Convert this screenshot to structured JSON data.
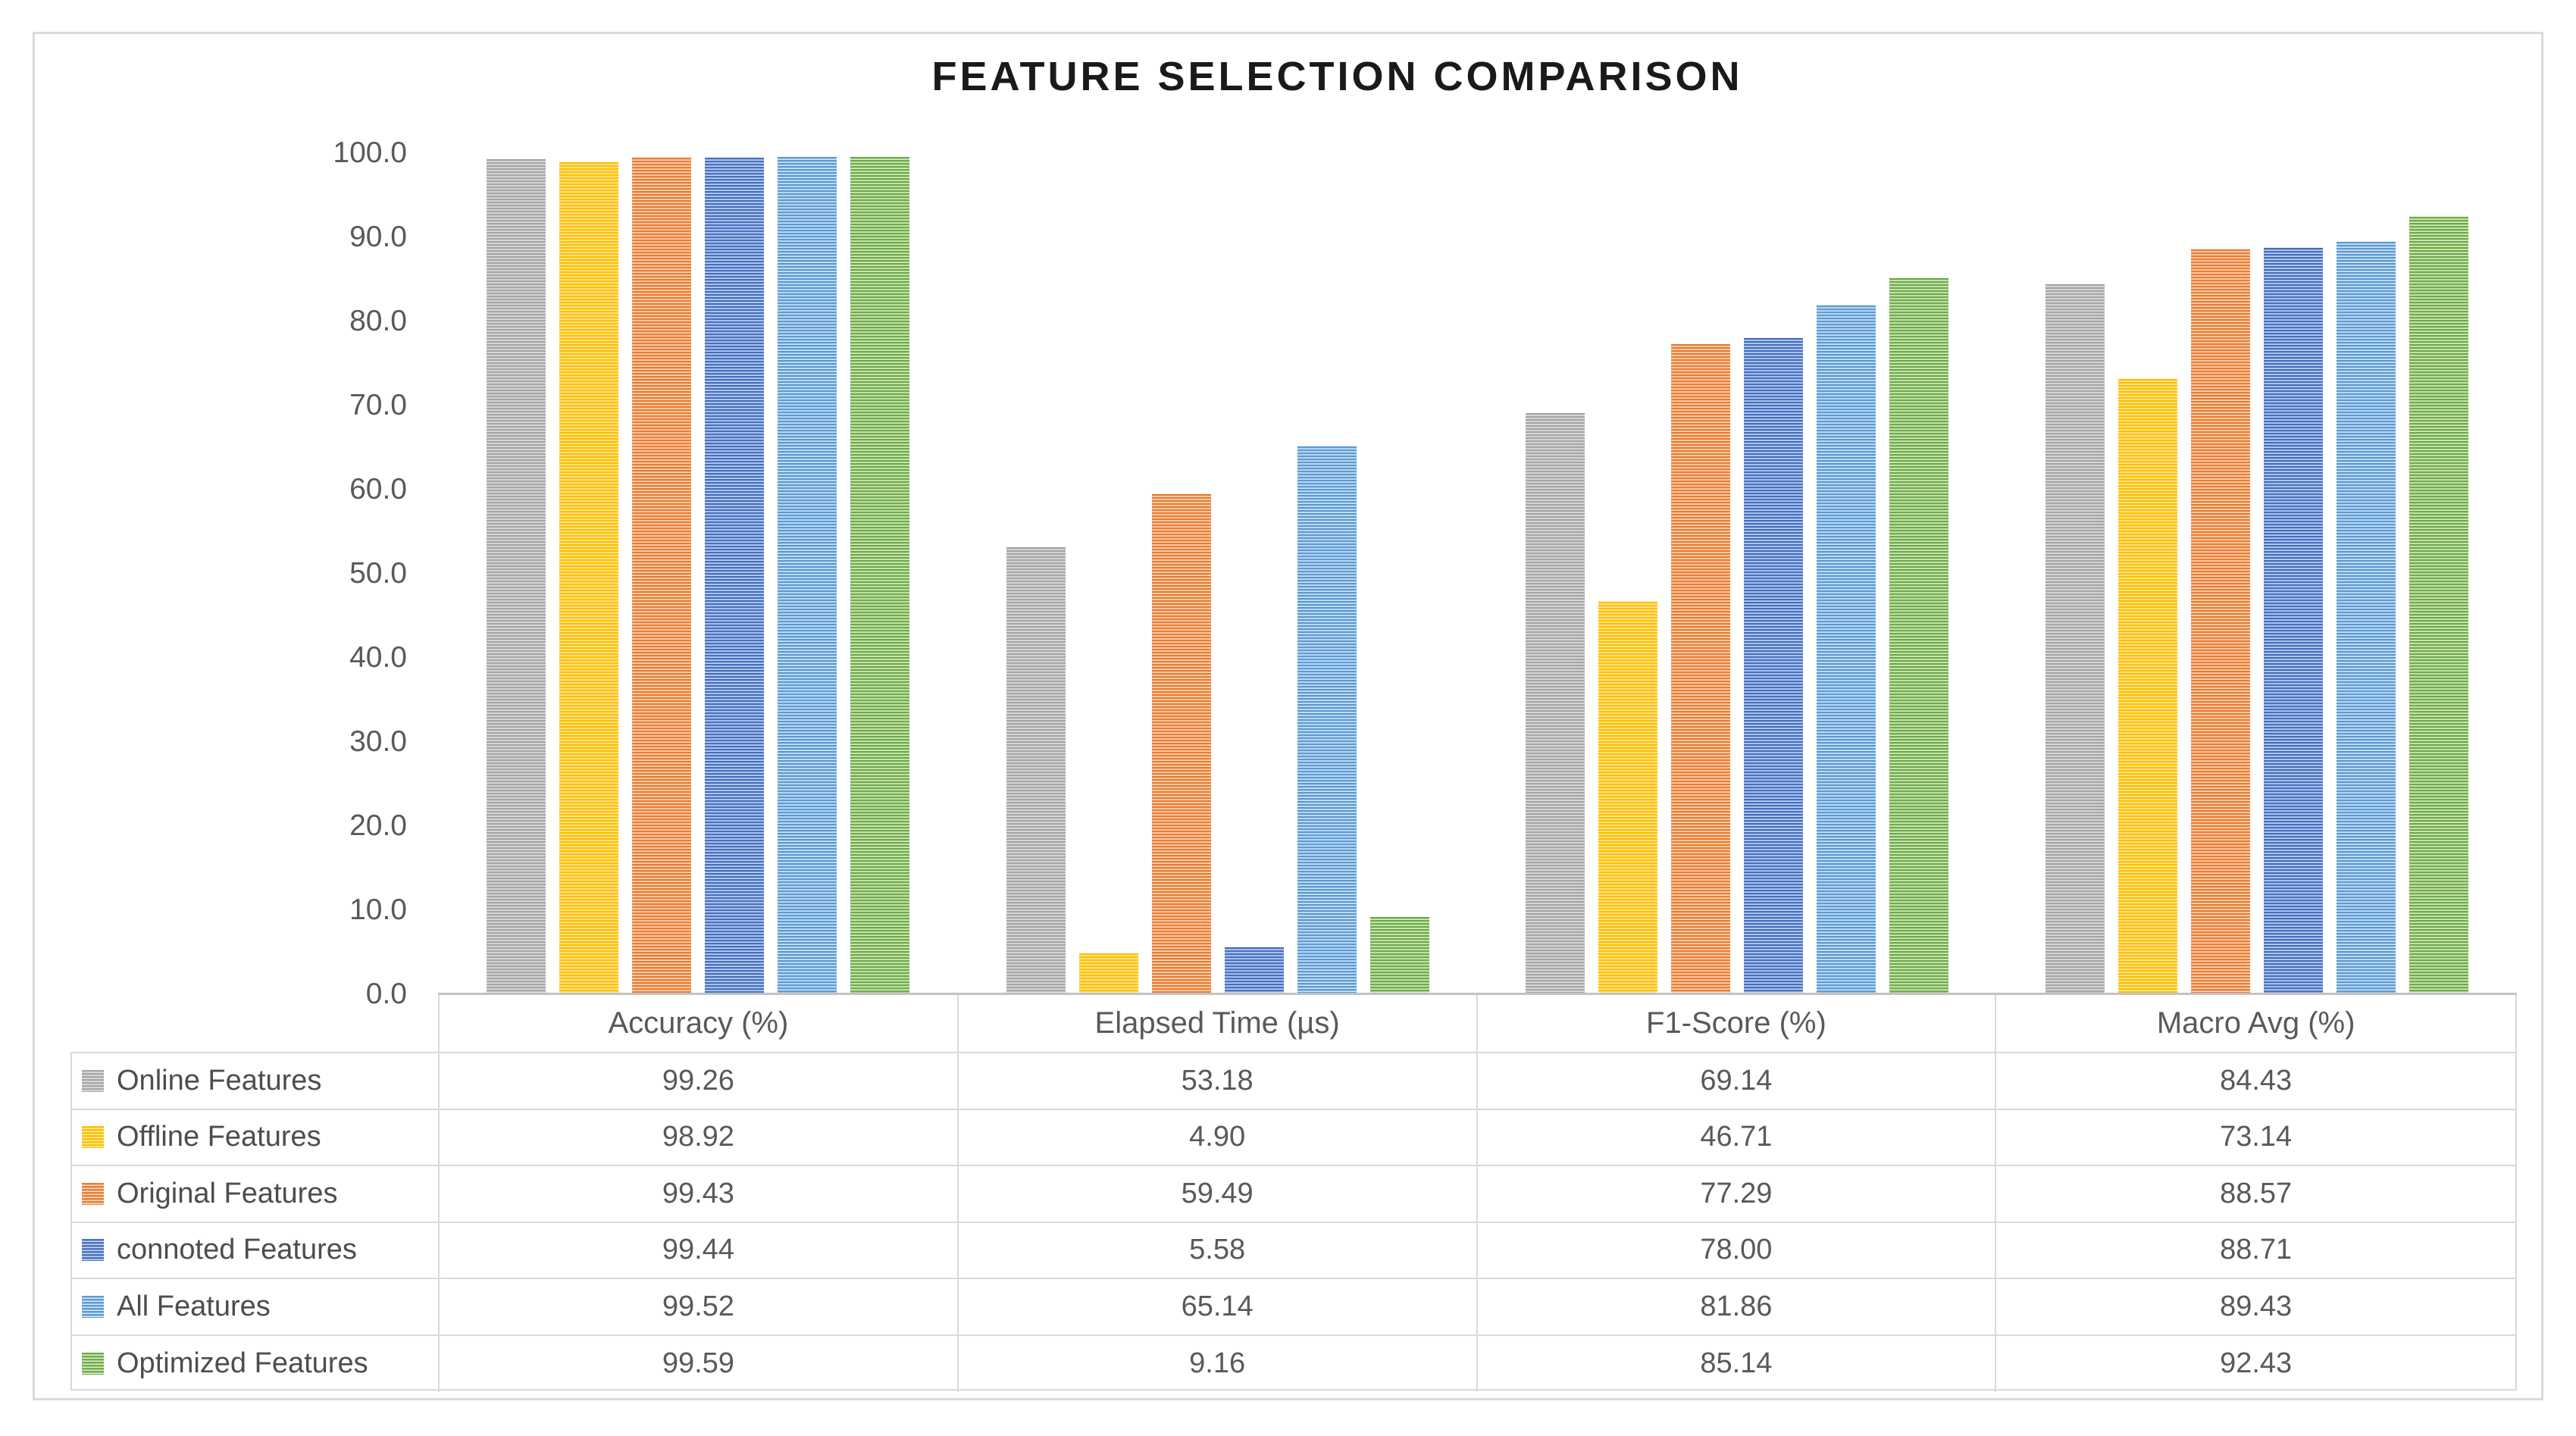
{
  "chart_data": {
    "type": "bar",
    "title": "FEATURE SELECTION COMPARISON",
    "categories": [
      "Accuracy (%)",
      "Elapsed Time (µs)",
      "F1-Score (%)",
      "Macro Avg (%)"
    ],
    "series": [
      {
        "name": "Online Features",
        "color": "#a7a7a7",
        "stripe_color": "#e0e0e0",
        "values": [
          99.26,
          53.18,
          69.14,
          84.43
        ]
      },
      {
        "name": "Offline Features",
        "color": "#ffc000",
        "stripe_color": "#ffeab0",
        "values": [
          98.92,
          4.9,
          46.71,
          73.14
        ]
      },
      {
        "name": "Original Features",
        "color": "#ed7d31",
        "stripe_color": "#f9ddc9",
        "values": [
          99.43,
          59.49,
          77.29,
          88.57
        ]
      },
      {
        "name": "connoted Features",
        "color": "#4472c4",
        "stripe_color": "#ccd7ef",
        "values": [
          99.44,
          5.58,
          78.0,
          88.71
        ]
      },
      {
        "name": "All Features",
        "color": "#5b9bd5",
        "stripe_color": "#d9e8f6",
        "values": [
          99.52,
          65.14,
          81.86,
          89.43
        ]
      },
      {
        "name": "Optimized Features",
        "color": "#70ad47",
        "stripe_color": "#dcedd0",
        "values": [
          99.59,
          9.16,
          85.14,
          92.43
        ]
      }
    ],
    "ylim": [
      0,
      100
    ],
    "ytick_step": 10,
    "ytick_decimals": 1,
    "value_decimals": 2,
    "grid": false,
    "bar_pattern": "horizontal-stripes",
    "legend_position": "table-left"
  },
  "colors": {
    "background": "#ffffff",
    "canvas_border": "#d9d9d9",
    "table_border": "#d9d9d9",
    "axis_line": "#c2c2c2",
    "text": "#595959",
    "title_text": "#1a1a1a"
  }
}
